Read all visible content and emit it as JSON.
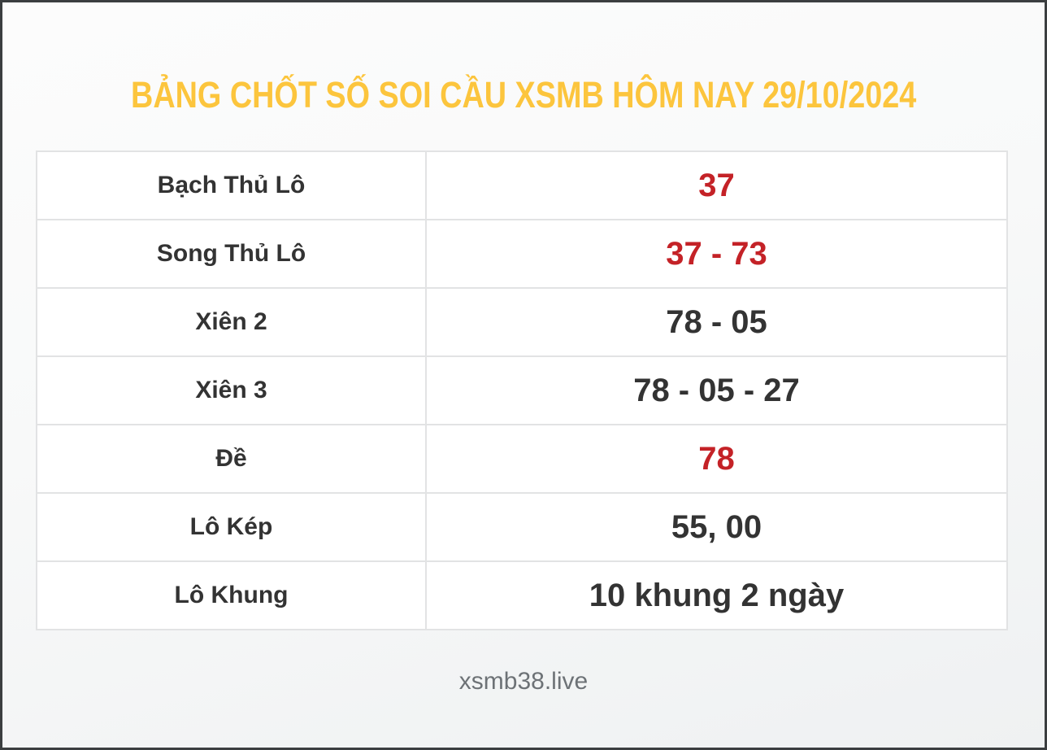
{
  "page": {
    "title": "BẢNG CHỐT SỐ SOI CẦU XSMB HÔM NAY 29/10/2024",
    "date": "29/10/2024",
    "footer": "xsmb38.live"
  },
  "colors": {
    "title": "#fcc53d",
    "highlight": "#c42227",
    "text_dark": "#333333",
    "footer_gray": "#6d7276",
    "frame_border": "#3b3e40",
    "cell_border": "#e2e3e4",
    "cell_bg": "#ffffff"
  },
  "table": {
    "rows": [
      {
        "label": "Bạch Thủ Lô",
        "value": "37",
        "highlight": true
      },
      {
        "label": "Song Thủ Lô",
        "value": "37 - 73",
        "highlight": true
      },
      {
        "label": "Xiên 2",
        "value": "78 - 05",
        "highlight": false
      },
      {
        "label": "Xiên 3",
        "value": "78 - 05 - 27",
        "highlight": false
      },
      {
        "label": "Đề",
        "value": "78",
        "highlight": true
      },
      {
        "label": "Lô Kép",
        "value": "55, 00",
        "highlight": false
      },
      {
        "label": "Lô Khung",
        "value": "10 khung 2 ngày",
        "highlight": false
      }
    ]
  }
}
